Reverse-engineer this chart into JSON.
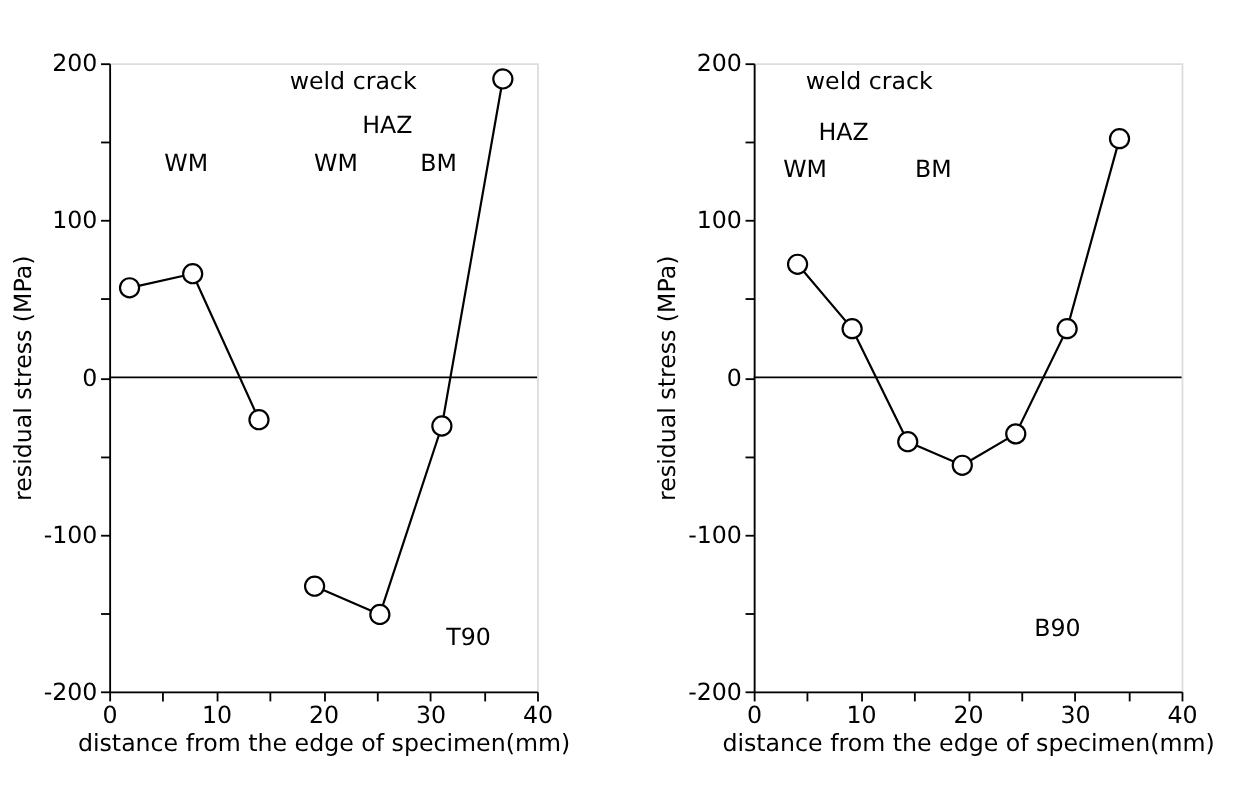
{
  "chart_data": [
    {
      "type": "line",
      "xlabel": "distance from the edge of specimen(mm)",
      "ylabel": "residual stress (MPa)",
      "xlim": [
        0,
        40
      ],
      "ylim": [
        -200,
        200
      ],
      "xticks": [
        0,
        {
          "value": 5,
          "label": null
        },
        10,
        {
          "value": 15,
          "label": null
        },
        20,
        {
          "value": 25,
          "label": null
        },
        30,
        {
          "value": 35,
          "label": null
        },
        40
      ],
      "yticks": [
        -200,
        {
          "value": -150,
          "label": null
        },
        -100,
        {
          "value": -50,
          "label": null
        },
        0,
        {
          "value": 50,
          "label": null
        },
        100,
        {
          "value": 150,
          "label": null
        },
        200
      ],
      "grid": false,
      "marker": "circle",
      "line_style": "solid",
      "series": [
        {
          "color": "#000000",
          "x": [
            1.9,
            7.8,
            14.0
          ],
          "values": [
            57,
            66,
            -27
          ]
        },
        {
          "color": "#000000",
          "x": [
            19.2,
            25.3,
            31.1,
            36.8
          ],
          "values": [
            -133,
            -151,
            -31,
            190
          ]
        }
      ],
      "ref_lines": [
        {
          "axis": "y",
          "value": 0,
          "label": null,
          "color": "#000000"
        }
      ],
      "annotations": [
        "weld crack",
        "WM",
        "WM",
        "HAZ",
        "BM",
        "T90"
      ]
    },
    {
      "type": "line",
      "xlabel": "distance from the edge of specimen(mm)",
      "ylabel": "residual stress (MPa)",
      "xlim": [
        0,
        40
      ],
      "ylim": [
        -200,
        200
      ],
      "xticks": [
        0,
        {
          "value": 5,
          "label": null
        },
        10,
        {
          "value": 15,
          "label": null
        },
        20,
        {
          "value": 25,
          "label": null
        },
        30,
        {
          "value": 35,
          "label": null
        },
        40
      ],
      "yticks": [
        -200,
        {
          "value": -150,
          "label": null
        },
        -100,
        {
          "value": -50,
          "label": null
        },
        0,
        {
          "value": 50,
          "label": null
        },
        100,
        {
          "value": 150,
          "label": null
        },
        200
      ],
      "grid": false,
      "marker": "circle",
      "line_style": "solid",
      "series": [
        {
          "color": "#000000",
          "x": [
            4.1,
            9.2,
            14.4,
            19.5,
            24.5,
            29.3,
            34.2
          ],
          "values": [
            72,
            31,
            -41,
            -56,
            -36,
            31,
            152
          ]
        }
      ],
      "ref_lines": [
        {
          "axis": "y",
          "value": 0,
          "label": null,
          "color": "#000000"
        }
      ],
      "annotations": [
        "weld crack",
        "WM",
        "HAZ",
        "BM",
        "B90"
      ]
    }
  ]
}
